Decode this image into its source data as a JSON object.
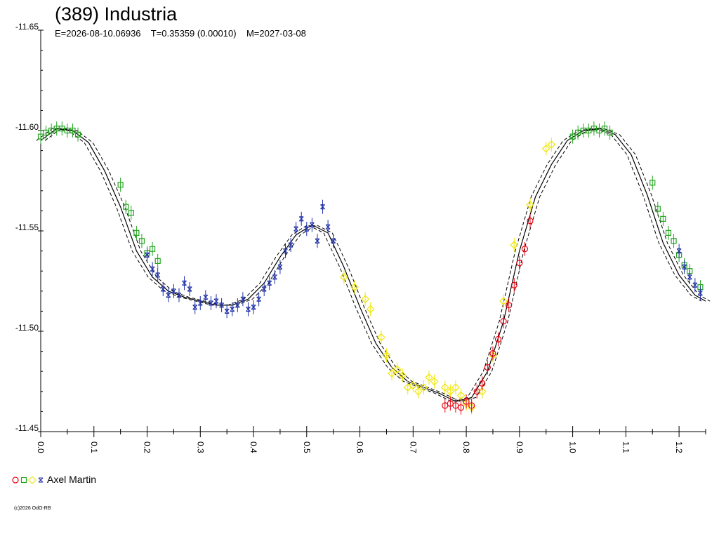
{
  "header": {
    "title": "(389) Industria",
    "subtitle": "E=2026-08-10.06936    T=0.35359 (0.00010)    M=2027-03-08"
  },
  "legend": {
    "label": "Axel Martin",
    "symbols": [
      "circle-red",
      "square-green",
      "diamond-yellow",
      "star-blue"
    ]
  },
  "footer": {
    "copyright": "(c)2026 OdO-RB"
  },
  "colors": {
    "red": "#e8000e",
    "green": "#22a51f",
    "yellow": "#f0e600",
    "blue": "#1e2fa6",
    "fit": "#000000",
    "axis": "#000000"
  },
  "chart_data": {
    "type": "scatter",
    "title": "(389) Industria",
    "subtitle": "E=2026-08-10.06936    T=0.35359 (0.00010)    M=2027-03-08",
    "xlabel": "",
    "ylabel": "",
    "xlim": [
      0.0,
      1.25
    ],
    "ylim": [
      -11.65,
      -11.45
    ],
    "y_inverted_note": "brighter (more negative) at top",
    "x_ticks": [
      "0.0",
      "0.1",
      "0.2",
      "0.3",
      "0.4",
      "0.5",
      "0.6",
      "0.7",
      "0.8",
      "0.9",
      "1.0",
      "1.1",
      "1.2"
    ],
    "y_ticks": [
      "-11.65",
      "-11.60",
      "-11.55",
      "-11.50",
      "-11.45"
    ],
    "grid": false,
    "legend_position": "bottom-left",
    "fit_curve": {
      "name": "",
      "points": [
        [
          0.0,
          -11.595
        ],
        [
          0.03,
          -11.601
        ],
        [
          0.06,
          -11.6
        ],
        [
          0.09,
          -11.594
        ],
        [
          0.12,
          -11.58
        ],
        [
          0.15,
          -11.562
        ],
        [
          0.18,
          -11.54
        ],
        [
          0.21,
          -11.527
        ],
        [
          0.24,
          -11.52
        ],
        [
          0.27,
          -11.517
        ],
        [
          0.3,
          -11.515
        ],
        [
          0.33,
          -11.513
        ],
        [
          0.36,
          -11.513
        ],
        [
          0.39,
          -11.516
        ],
        [
          0.42,
          -11.524
        ],
        [
          0.45,
          -11.537
        ],
        [
          0.48,
          -11.548
        ],
        [
          0.51,
          -11.553
        ],
        [
          0.54,
          -11.549
        ],
        [
          0.57,
          -11.532
        ],
        [
          0.6,
          -11.512
        ],
        [
          0.63,
          -11.494
        ],
        [
          0.66,
          -11.482
        ],
        [
          0.69,
          -11.475
        ],
        [
          0.72,
          -11.472
        ],
        [
          0.75,
          -11.469
        ],
        [
          0.78,
          -11.465
        ],
        [
          0.81,
          -11.467
        ],
        [
          0.84,
          -11.48
        ],
        [
          0.87,
          -11.505
        ],
        [
          0.9,
          -11.54
        ],
        [
          0.93,
          -11.567
        ],
        [
          0.96,
          -11.583
        ],
        [
          0.99,
          -11.595
        ],
        [
          1.02,
          -11.6
        ],
        [
          1.05,
          -11.601
        ],
        [
          1.08,
          -11.598
        ],
        [
          1.11,
          -11.588
        ],
        [
          1.14,
          -11.568
        ],
        [
          1.17,
          -11.544
        ],
        [
          1.2,
          -11.528
        ],
        [
          1.23,
          -11.518
        ],
        [
          1.25,
          -11.515
        ]
      ]
    },
    "series": [
      {
        "name": "",
        "color": "green",
        "marker": "square",
        "points": [
          [
            0.0,
            -11.597
          ],
          [
            0.01,
            -11.599
          ],
          [
            0.02,
            -11.6
          ],
          [
            0.03,
            -11.601
          ],
          [
            0.04,
            -11.601
          ],
          [
            0.05,
            -11.6
          ],
          [
            0.06,
            -11.6
          ],
          [
            0.07,
            -11.598
          ],
          [
            0.15,
            -11.573
          ],
          [
            0.16,
            -11.562
          ],
          [
            0.17,
            -11.559
          ],
          [
            0.18,
            -11.549
          ],
          [
            0.19,
            -11.545
          ],
          [
            0.2,
            -11.539
          ],
          [
            0.21,
            -11.541
          ],
          [
            0.22,
            -11.535
          ],
          [
            1.0,
            -11.597
          ],
          [
            1.01,
            -11.599
          ],
          [
            1.02,
            -11.6
          ],
          [
            1.03,
            -11.6
          ],
          [
            1.04,
            -11.601
          ],
          [
            1.05,
            -11.6
          ],
          [
            1.06,
            -11.601
          ],
          [
            1.07,
            -11.599
          ],
          [
            1.15,
            -11.574
          ],
          [
            1.16,
            -11.561
          ],
          [
            1.17,
            -11.556
          ],
          [
            1.18,
            -11.549
          ],
          [
            1.19,
            -11.545
          ],
          [
            1.2,
            -11.538
          ],
          [
            1.21,
            -11.533
          ],
          [
            1.22,
            -11.53
          ],
          [
            1.24,
            -11.522
          ]
        ]
      },
      {
        "name": "",
        "color": "blue",
        "marker": "star",
        "points": [
          [
            0.2,
            -11.538
          ],
          [
            0.21,
            -11.531
          ],
          [
            0.22,
            -11.528
          ],
          [
            0.23,
            -11.521
          ],
          [
            0.24,
            -11.518
          ],
          [
            0.25,
            -11.52
          ],
          [
            0.26,
            -11.518
          ],
          [
            0.27,
            -11.524
          ],
          [
            0.28,
            -11.521
          ],
          [
            0.29,
            -11.512
          ],
          [
            0.3,
            -11.514
          ],
          [
            0.31,
            -11.517
          ],
          [
            0.32,
            -11.514
          ],
          [
            0.33,
            -11.515
          ],
          [
            0.34,
            -11.513
          ],
          [
            0.35,
            -11.51
          ],
          [
            0.36,
            -11.511
          ],
          [
            0.37,
            -11.513
          ],
          [
            0.38,
            -11.516
          ],
          [
            0.39,
            -11.511
          ],
          [
            0.4,
            -11.512
          ],
          [
            0.41,
            -11.516
          ],
          [
            0.42,
            -11.521
          ],
          [
            0.43,
            -11.524
          ],
          [
            0.44,
            -11.527
          ],
          [
            0.45,
            -11.532
          ],
          [
            0.46,
            -11.54
          ],
          [
            0.47,
            -11.543
          ],
          [
            0.48,
            -11.551
          ],
          [
            0.49,
            -11.556
          ],
          [
            0.5,
            -11.551
          ],
          [
            0.51,
            -11.553
          ],
          [
            0.52,
            -11.545
          ],
          [
            0.53,
            -11.562
          ],
          [
            0.54,
            -11.552
          ],
          [
            0.55,
            -11.545
          ],
          [
            1.2,
            -11.54
          ],
          [
            1.21,
            -11.532
          ],
          [
            1.22,
            -11.527
          ],
          [
            1.23,
            -11.523
          ],
          [
            1.24,
            -11.519
          ]
        ]
      },
      {
        "name": "",
        "color": "yellow",
        "marker": "diamond",
        "points": [
          [
            0.57,
            -11.527
          ],
          [
            0.59,
            -11.522
          ],
          [
            0.61,
            -11.516
          ],
          [
            0.62,
            -11.511
          ],
          [
            0.64,
            -11.497
          ],
          [
            0.65,
            -11.488
          ],
          [
            0.66,
            -11.479
          ],
          [
            0.67,
            -11.481
          ],
          [
            0.68,
            -11.478
          ],
          [
            0.69,
            -11.472
          ],
          [
            0.7,
            -11.473
          ],
          [
            0.71,
            -11.47
          ],
          [
            0.72,
            -11.472
          ],
          [
            0.73,
            -11.477
          ],
          [
            0.74,
            -11.475
          ],
          [
            0.76,
            -11.472
          ],
          [
            0.77,
            -11.47
          ],
          [
            0.78,
            -11.472
          ],
          [
            0.79,
            -11.468
          ],
          [
            0.8,
            -11.464
          ],
          [
            0.81,
            -11.462
          ],
          [
            0.83,
            -11.47
          ],
          [
            0.85,
            -11.488
          ],
          [
            0.87,
            -11.515
          ],
          [
            0.89,
            -11.543
          ],
          [
            0.92,
            -11.563
          ],
          [
            0.95,
            -11.591
          ],
          [
            0.96,
            -11.593
          ]
        ]
      },
      {
        "name": "",
        "color": "red",
        "marker": "circle",
        "points": [
          [
            0.76,
            -11.463
          ],
          [
            0.77,
            -11.464
          ],
          [
            0.78,
            -11.463
          ],
          [
            0.79,
            -11.462
          ],
          [
            0.8,
            -11.465
          ],
          [
            0.81,
            -11.463
          ],
          [
            0.82,
            -11.47
          ],
          [
            0.83,
            -11.474
          ],
          [
            0.84,
            -11.482
          ],
          [
            0.85,
            -11.489
          ],
          [
            0.86,
            -11.496
          ],
          [
            0.87,
            -11.505
          ],
          [
            0.88,
            -11.513
          ],
          [
            0.89,
            -11.523
          ],
          [
            0.9,
            -11.534
          ],
          [
            0.91,
            -11.541
          ],
          [
            0.92,
            -11.555
          ]
        ]
      }
    ]
  }
}
